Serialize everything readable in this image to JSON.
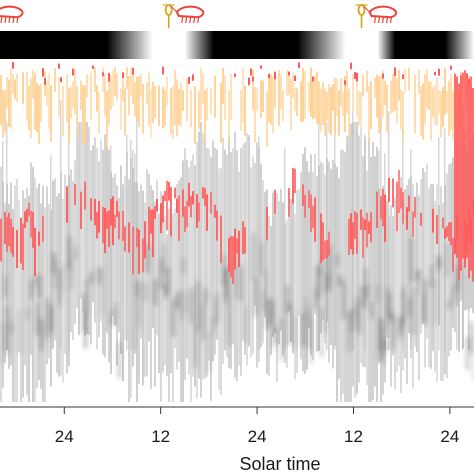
{
  "chart_data": {
    "type": "heatmap",
    "title": "",
    "xlabel": "Solar time",
    "ylabel": "",
    "x_ticks": [
      "24",
      "12",
      "24",
      "12",
      "24"
    ],
    "x_tick_values": [
      24,
      36,
      48,
      60,
      72
    ],
    "xlim": [
      16,
      75
    ],
    "day_night_bar": {
      "night_periods": [
        [
          16,
          35
        ],
        [
          39,
          59
        ],
        [
          63,
          75
        ]
      ],
      "colors": {
        "night": "#000000",
        "day": "#ffffff"
      }
    },
    "layers": [
      {
        "color": "#ffcf8f",
        "label": "",
        "depth_band": "surface"
      },
      {
        "color": "#ff5b5b",
        "label": "",
        "depth_band": "upper-middle"
      },
      {
        "color": "#c8c8c8",
        "label": "",
        "depth_band": "middle-deep"
      },
      {
        "color": "#000000",
        "label": "",
        "depth_band": "core density"
      }
    ],
    "organism_icons": [
      {
        "x": 16,
        "name": "krill-icon",
        "color": "#e8463c"
      },
      {
        "x": 37,
        "name": "copepod-icon",
        "color": "#d7a416"
      },
      {
        "x": 38.5,
        "name": "krill-icon",
        "color": "#e8463c"
      },
      {
        "x": 61,
        "name": "copepod-icon",
        "color": "#d7a416"
      },
      {
        "x": 62.5,
        "name": "krill-icon",
        "color": "#e8463c"
      }
    ],
    "grid": false,
    "legend": "none"
  }
}
